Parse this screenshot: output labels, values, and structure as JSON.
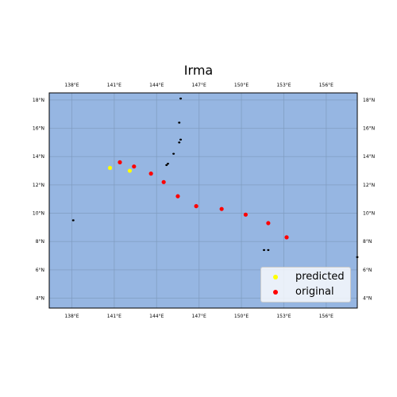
{
  "title": "Irma",
  "map": {
    "ocean_color": "#96b6e2",
    "grid_color": "#7f9bbf",
    "lon_ticks": [
      138,
      141,
      144,
      147,
      150,
      153,
      156
    ],
    "lat_ticks": [
      4,
      6,
      8,
      10,
      12,
      14,
      16,
      18
    ],
    "lon_range": [
      136.4,
      158.2
    ],
    "lat_range": [
      3.3,
      18.5
    ],
    "lon_tick_labels": [
      "138°E",
      "141°E",
      "144°E",
      "147°E",
      "150°E",
      "153°E",
      "156°E"
    ],
    "lat_tick_labels": [
      "4°N",
      "6°N",
      "8°N",
      "10°N",
      "12°N",
      "14°N",
      "16°N",
      "18°N"
    ]
  },
  "legend": {
    "predicted_label": "predicted",
    "original_label": "original",
    "predicted_color": "#ffff00",
    "original_color": "#ff0000"
  },
  "chart_data": {
    "type": "scatter",
    "title": "Irma",
    "series": [
      {
        "name": "original",
        "color": "#ff0000",
        "points": [
          {
            "lon": 153.2,
            "lat": 8.3
          },
          {
            "lon": 151.9,
            "lat": 9.3
          },
          {
            "lon": 150.3,
            "lat": 9.9
          },
          {
            "lon": 148.6,
            "lat": 10.3
          },
          {
            "lon": 146.8,
            "lat": 10.5
          },
          {
            "lon": 145.5,
            "lat": 11.2
          },
          {
            "lon": 144.5,
            "lat": 12.2
          },
          {
            "lon": 143.6,
            "lat": 12.8
          },
          {
            "lon": 142.4,
            "lat": 13.3
          },
          {
            "lon": 141.4,
            "lat": 13.6
          }
        ]
      },
      {
        "name": "predicted",
        "color": "#ffff00",
        "points": [
          {
            "lon": 140.7,
            "lat": 13.2
          },
          {
            "lon": 142.1,
            "lat": 13.0
          }
        ]
      }
    ],
    "islands": [
      {
        "lon": 145.7,
        "lat": 18.1
      },
      {
        "lon": 145.6,
        "lat": 16.4
      },
      {
        "lon": 145.7,
        "lat": 15.2
      },
      {
        "lon": 145.6,
        "lat": 15.0
      },
      {
        "lon": 145.2,
        "lat": 14.2
      },
      {
        "lon": 144.8,
        "lat": 13.5
      },
      {
        "lon": 144.7,
        "lat": 13.4
      },
      {
        "lon": 138.1,
        "lat": 9.5
      },
      {
        "lon": 151.6,
        "lat": 7.4
      },
      {
        "lon": 151.9,
        "lat": 7.4
      },
      {
        "lon": 158.2,
        "lat": 6.9
      }
    ]
  }
}
